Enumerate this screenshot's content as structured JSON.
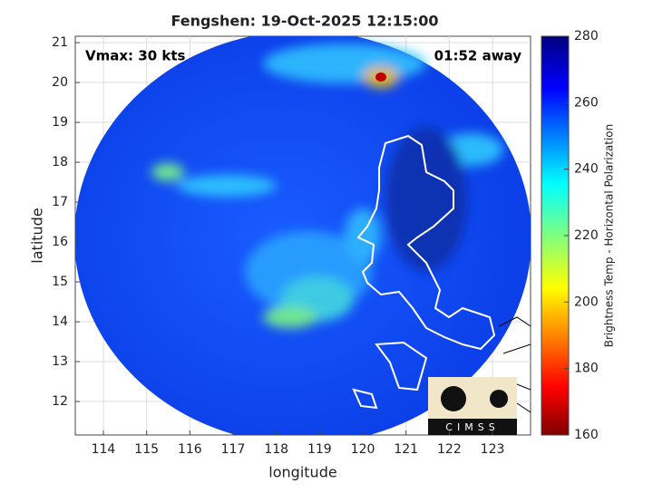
{
  "chart_data": {
    "type": "map",
    "title": "Fengshen: 19-Oct-2025 12:15:00",
    "annotations": [
      "Vmax: 30 kts",
      "01:52 away"
    ],
    "xlabel": "longitude",
    "ylabel": "latitude",
    "xlim": [
      113.35,
      123.88
    ],
    "xticks": [
      114,
      115,
      116,
      117,
      118,
      119,
      120,
      121,
      122,
      123
    ],
    "ylim": [
      11.16,
      21.16
    ],
    "yticks": [
      12,
      13,
      14,
      15,
      16,
      17,
      18,
      19,
      20,
      21
    ],
    "grid": true,
    "colorbar": {
      "label": "Brightness Temp - Horizontal Polarization",
      "lim": [
        160,
        280
      ],
      "ticks": [
        160,
        180,
        200,
        220,
        240,
        260,
        280
      ]
    },
    "logo": "CIMSS"
  }
}
